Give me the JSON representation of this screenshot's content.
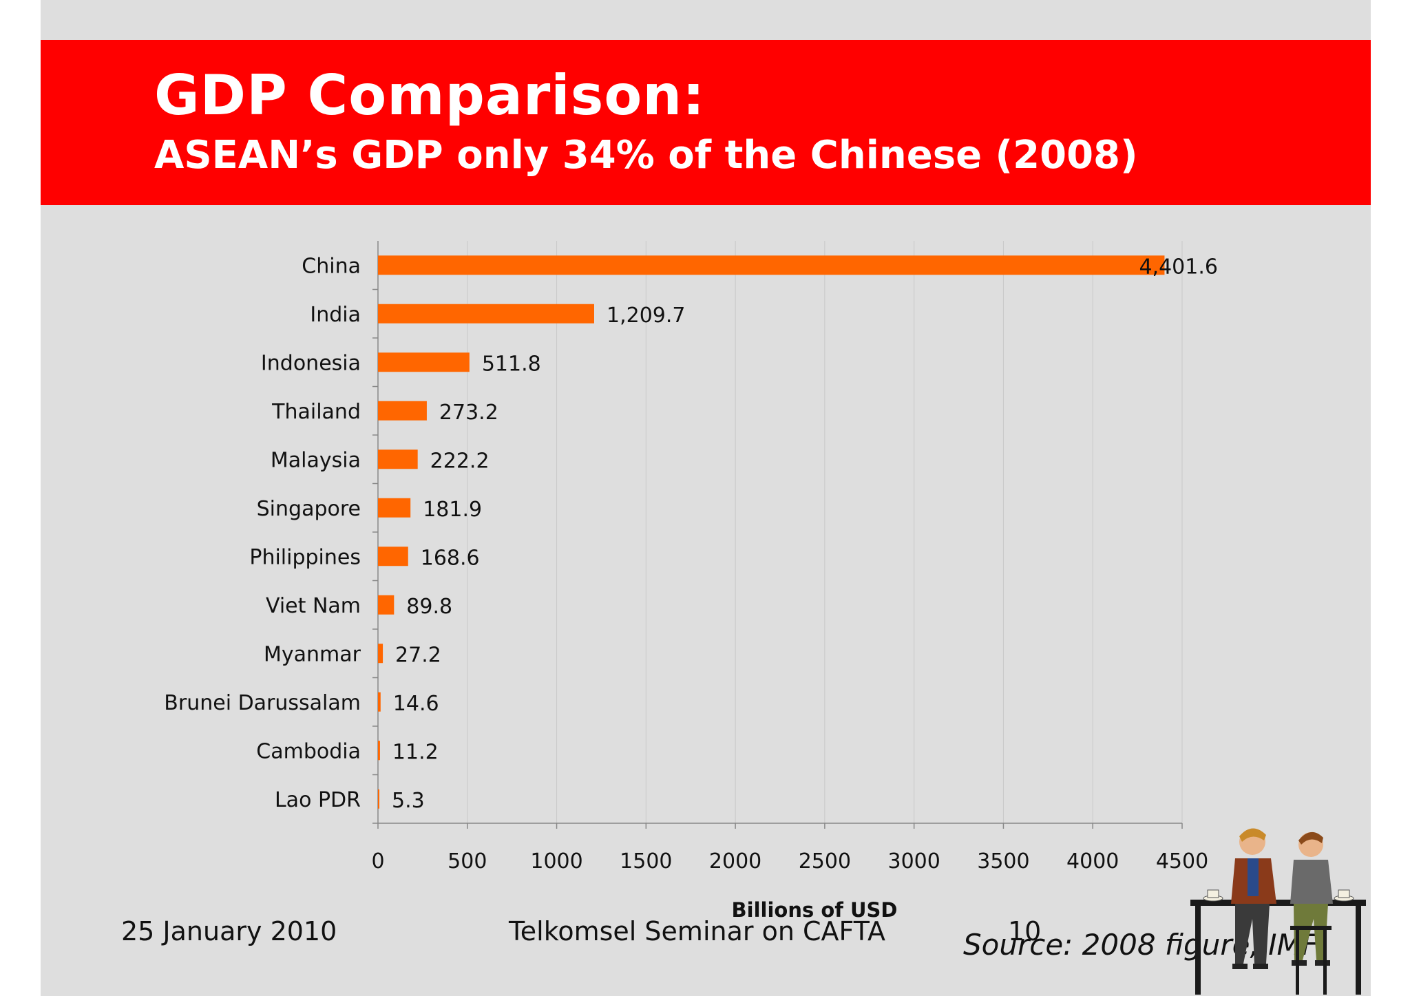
{
  "slide": {
    "title": "GDP Comparison:",
    "subtitle": "ASEAN’s GDP only 34% of the Chinese (2008)",
    "footer_date": "25 January 2010",
    "footer_event": "Telkomsel Seminar on CAFTA",
    "page_number": "10",
    "source": "Source: 2008 figure, IMF",
    "colors": {
      "banner": "#ff0000",
      "bar": "#ff6600",
      "background": "#dedede"
    }
  },
  "chart_data": {
    "type": "bar",
    "orientation": "horizontal",
    "title": "",
    "xlabel": "Billions of USD",
    "ylabel": "",
    "categories": [
      "China",
      "India",
      "Indonesia",
      "Thailand",
      "Malaysia",
      "Singapore",
      "Philippines",
      "Viet Nam",
      "Myanmar",
      "Brunei Darussalam",
      "Cambodia",
      "Lao PDR"
    ],
    "values": [
      4401.6,
      1209.7,
      511.8,
      273.2,
      222.2,
      181.9,
      168.6,
      89.8,
      27.2,
      14.6,
      11.2,
      5.3
    ],
    "value_labels": [
      "4,401.6",
      "1,209.7",
      "511.8",
      "273.2",
      "222.2",
      "181.9",
      "168.6",
      "89.8",
      "27.2",
      "14.6",
      "11.2",
      "5.3"
    ],
    "xlim": [
      0,
      4500
    ],
    "xticks": [
      0,
      500,
      1000,
      1500,
      2000,
      2500,
      3000,
      3500,
      4000,
      4500
    ],
    "grid": "vertical",
    "legend": "none"
  }
}
